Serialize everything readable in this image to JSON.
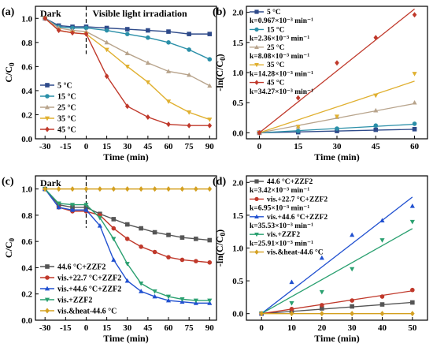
{
  "panels": [
    {
      "id": "a",
      "letter": "(a)",
      "type": "line",
      "xlabel": "Time (min)",
      "ylabel": "C/C",
      "ylabel_sub": "0",
      "xlim": [
        -37,
        95
      ],
      "ylim": [
        0,
        1.1
      ],
      "xticks": [
        -30,
        -15,
        0,
        15,
        30,
        45,
        60,
        75,
        90
      ],
      "yticks": [
        0.0,
        0.2,
        0.4,
        0.6,
        0.8,
        1.0
      ],
      "ytick_labels": [
        "0.0",
        "0.2",
        "0.4",
        "0.6",
        "0.8",
        "1.0"
      ],
      "annotations": {
        "left": "Dark",
        "right": "Visible light irradiation"
      },
      "dashed_x": 0,
      "legend": "lower-left",
      "series": [
        {
          "name": "5 °C",
          "color": "#2e4a8a",
          "marker": "square",
          "x": [
            -30,
            -20,
            -10,
            0,
            15,
            30,
            45,
            60,
            75,
            90
          ],
          "y": [
            1.0,
            0.94,
            0.93,
            0.93,
            0.92,
            0.91,
            0.9,
            0.89,
            0.87,
            0.87
          ]
        },
        {
          "name": "15 °C",
          "color": "#2a8fa8",
          "marker": "circle",
          "x": [
            -30,
            -20,
            -10,
            0,
            15,
            30,
            45,
            60,
            75,
            90
          ],
          "y": [
            1.0,
            0.93,
            0.92,
            0.92,
            0.9,
            0.87,
            0.84,
            0.8,
            0.74,
            0.66
          ]
        },
        {
          "name": "25 °C",
          "color": "#b8a48c",
          "marker": "triangle",
          "x": [
            -30,
            -20,
            -10,
            0,
            15,
            30,
            45,
            60,
            75,
            90
          ],
          "y": [
            1.0,
            0.92,
            0.9,
            0.89,
            0.8,
            0.71,
            0.63,
            0.56,
            0.53,
            0.44
          ]
        },
        {
          "name": "35 °C",
          "color": "#e0b030",
          "marker": "triangle-down",
          "x": [
            -30,
            -20,
            -10,
            0,
            15,
            30,
            45,
            60,
            75,
            90
          ],
          "y": [
            1.0,
            0.9,
            0.88,
            0.87,
            0.74,
            0.6,
            0.47,
            0.31,
            0.22,
            0.16
          ]
        },
        {
          "name": "45 °C",
          "color": "#c0392b",
          "marker": "diamond",
          "x": [
            -30,
            -20,
            -10,
            0,
            15,
            30,
            45,
            60,
            75,
            90
          ],
          "y": [
            1.0,
            0.9,
            0.88,
            0.87,
            0.52,
            0.27,
            0.18,
            0.12,
            0.11,
            0.11
          ]
        }
      ]
    },
    {
      "id": "b",
      "letter": "(b)",
      "type": "scatter",
      "xlabel": "Time (min)",
      "ylabel": "-ln(C/C",
      "ylabel_sub": "0",
      "ylabel_end": ")",
      "xlim": [
        -5,
        65
      ],
      "ylim": [
        -0.1,
        2.1
      ],
      "xticks": [
        0,
        15,
        30,
        45,
        60
      ],
      "yticks": [
        0.0,
        0.5,
        1.0,
        1.5,
        2.0
      ],
      "ytick_labels": [
        "0.0",
        "0.5",
        "1.0",
        "1.5",
        "2.0"
      ],
      "legend": "top-left",
      "series": [
        {
          "name": "5 °C",
          "k_label": "k=0.967×10⁻³ min⁻¹",
          "color": "#2e4a8a",
          "marker": "square",
          "x": [
            0,
            15,
            30,
            45,
            60
          ],
          "y": [
            0.0,
            0.01,
            0.03,
            0.05,
            0.06
          ],
          "fit": [
            0,
            0.058
          ]
        },
        {
          "name": "15 °C",
          "k_label": "k=2.36×10⁻³ min⁻¹",
          "color": "#2a8fa8",
          "marker": "circle",
          "x": [
            0,
            15,
            30,
            45,
            60
          ],
          "y": [
            0.0,
            0.03,
            0.07,
            0.12,
            0.15
          ],
          "fit": [
            0,
            0.142
          ]
        },
        {
          "name": "25 °C",
          "k_label": "k=8.08×10⁻³ min⁻¹",
          "color": "#b8a48c",
          "marker": "triangle",
          "x": [
            0,
            15,
            30,
            45,
            60
          ],
          "y": [
            0.0,
            0.1,
            0.26,
            0.37,
            0.5
          ],
          "fit": [
            0,
            0.485
          ]
        },
        {
          "name": "35 °C",
          "k_label": "k=14.28×10⁻³ min⁻¹",
          "color": "#e0b030",
          "marker": "triangle-down",
          "x": [
            0,
            15,
            30,
            45,
            60
          ],
          "y": [
            0.0,
            0.1,
            0.27,
            0.62,
            0.98
          ],
          "fit": [
            0,
            0.857
          ]
        },
        {
          "name": "45 °C",
          "k_label": "k=34.27×10⁻³ min⁻¹",
          "color": "#c0392b",
          "marker": "diamond",
          "x": [
            0,
            15,
            30,
            45,
            60
          ],
          "y": [
            0.0,
            0.58,
            1.16,
            1.58,
            1.96
          ],
          "fit": [
            0,
            2.056
          ]
        }
      ]
    },
    {
      "id": "c",
      "letter": "(c)",
      "type": "line",
      "xlabel": "Time (min)",
      "ylabel": "C/C",
      "ylabel_sub": "0",
      "xlim": [
        -37,
        95
      ],
      "ylim": [
        0,
        1.1
      ],
      "xticks": [
        -30,
        -15,
        0,
        15,
        30,
        45,
        60,
        75,
        90
      ],
      "yticks": [
        0.0,
        0.2,
        0.4,
        0.6,
        0.8,
        1.0
      ],
      "ytick_labels": [
        "0.0",
        "0.2",
        "0.4",
        "0.6",
        "0.8",
        "1.0"
      ],
      "annotations": {
        "left": "Dark",
        "right": ""
      },
      "dashed_x": 0,
      "legend": "lower-left",
      "series": [
        {
          "name": "44.6 °C+ZZF2",
          "color": "#555555",
          "marker": "square",
          "x": [
            -30,
            -20,
            -10,
            0,
            10,
            20,
            30,
            40,
            50,
            60,
            70,
            80,
            90
          ],
          "y": [
            1.0,
            0.88,
            0.86,
            0.86,
            0.81,
            0.77,
            0.73,
            0.7,
            0.67,
            0.65,
            0.63,
            0.62,
            0.61
          ]
        },
        {
          "name": "vis.+22.7 °C+ZZF2",
          "color": "#c0392b",
          "marker": "circle",
          "x": [
            -30,
            -20,
            -10,
            0,
            10,
            20,
            30,
            40,
            50,
            60,
            70,
            80,
            90
          ],
          "y": [
            1.0,
            0.86,
            0.83,
            0.83,
            0.8,
            0.7,
            0.62,
            0.56,
            0.52,
            0.48,
            0.46,
            0.45,
            0.44
          ]
        },
        {
          "name": "vis.+44.6 °C+ZZF2",
          "color": "#2050d0",
          "marker": "triangle",
          "x": [
            -30,
            -20,
            -10,
            0,
            10,
            20,
            30,
            40,
            50,
            60,
            70,
            80,
            90
          ],
          "y": [
            1.0,
            0.86,
            0.84,
            0.84,
            0.72,
            0.46,
            0.3,
            0.22,
            0.18,
            0.15,
            0.14,
            0.13,
            0.13
          ]
        },
        {
          "name": "vis.+ZZF2",
          "color": "#2aa070",
          "marker": "triangle-down",
          "x": [
            -30,
            -20,
            -10,
            0,
            10,
            20,
            30,
            40,
            50,
            60,
            70,
            80,
            90
          ],
          "y": [
            1.0,
            0.89,
            0.88,
            0.88,
            0.78,
            0.62,
            0.43,
            0.28,
            0.22,
            0.18,
            0.16,
            0.15,
            0.15
          ]
        },
        {
          "name": "vis.&heat-44.6 °C",
          "color": "#d4a020",
          "marker": "diamond",
          "x": [
            -30,
            -20,
            -10,
            0,
            10,
            20,
            30,
            40,
            50,
            60,
            70,
            80,
            90
          ],
          "y": [
            1.0,
            1.0,
            1.0,
            1.0,
            1.0,
            1.0,
            1.0,
            1.0,
            1.0,
            1.0,
            1.0,
            1.0,
            1.0
          ]
        }
      ]
    },
    {
      "id": "d",
      "letter": "(d)",
      "type": "scatter",
      "xlabel": "Time (min)",
      "ylabel": "-ln(C/C",
      "ylabel_sub": "0",
      "ylabel_end": ")",
      "xlim": [
        -5,
        55
      ],
      "ylim": [
        -0.1,
        2.1
      ],
      "xticks": [
        0,
        10,
        20,
        30,
        40,
        50
      ],
      "yticks": [
        0.0,
        0.5,
        1.0,
        1.5,
        2.0
      ],
      "ytick_labels": [
        "0.0",
        "0.5",
        "1.0",
        "1.5",
        "2.0"
      ],
      "legend": "top-left",
      "series": [
        {
          "name": "44.6 °C+ZZF2",
          "k_label": "k=3.42×10⁻³ min⁻¹",
          "color": "#555555",
          "marker": "square",
          "x": [
            0,
            10,
            20,
            30,
            40,
            50
          ],
          "y": [
            0.0,
            0.04,
            0.08,
            0.11,
            0.14,
            0.17
          ],
          "fit": [
            0,
            0.171
          ]
        },
        {
          "name": "vis.+22.7 °C+ZZF2",
          "k_label": "k=6.95×10⁻³ min⁻¹",
          "color": "#c0392b",
          "marker": "circle",
          "x": [
            0,
            10,
            20,
            30,
            40,
            50
          ],
          "y": [
            0.0,
            0.07,
            0.13,
            0.2,
            0.26,
            0.36
          ],
          "fit": [
            0,
            0.348
          ]
        },
        {
          "name": "vis.+44.6 °C+ZZF2",
          "k_label": "k=35.53×10⁻³ min⁻¹",
          "color": "#2050d0",
          "marker": "triangle",
          "x": [
            0,
            10,
            20,
            30,
            40,
            50
          ],
          "y": [
            0.0,
            0.48,
            0.85,
            1.2,
            1.42,
            1.64
          ],
          "fit": [
            0,
            1.777
          ]
        },
        {
          "name": "vis.+ZZF2",
          "k_label": "k=25.91×10⁻³ min⁻¹",
          "color": "#2aa070",
          "marker": "triangle-down",
          "x": [
            0,
            10,
            20,
            30,
            40,
            50
          ],
          "y": [
            0.0,
            0.16,
            0.33,
            0.68,
            1.12,
            1.4
          ],
          "fit": [
            0,
            1.296
          ]
        },
        {
          "name": "vis.&heat-44.6 °C",
          "k_label": "",
          "color": "#d4a020",
          "marker": "diamond",
          "x": [
            0,
            10,
            20,
            30,
            40,
            50
          ],
          "y": [
            0.0,
            0.0,
            0.0,
            0.0,
            0.0,
            0.0
          ],
          "fit": [
            0,
            0.0
          ]
        }
      ]
    }
  ]
}
